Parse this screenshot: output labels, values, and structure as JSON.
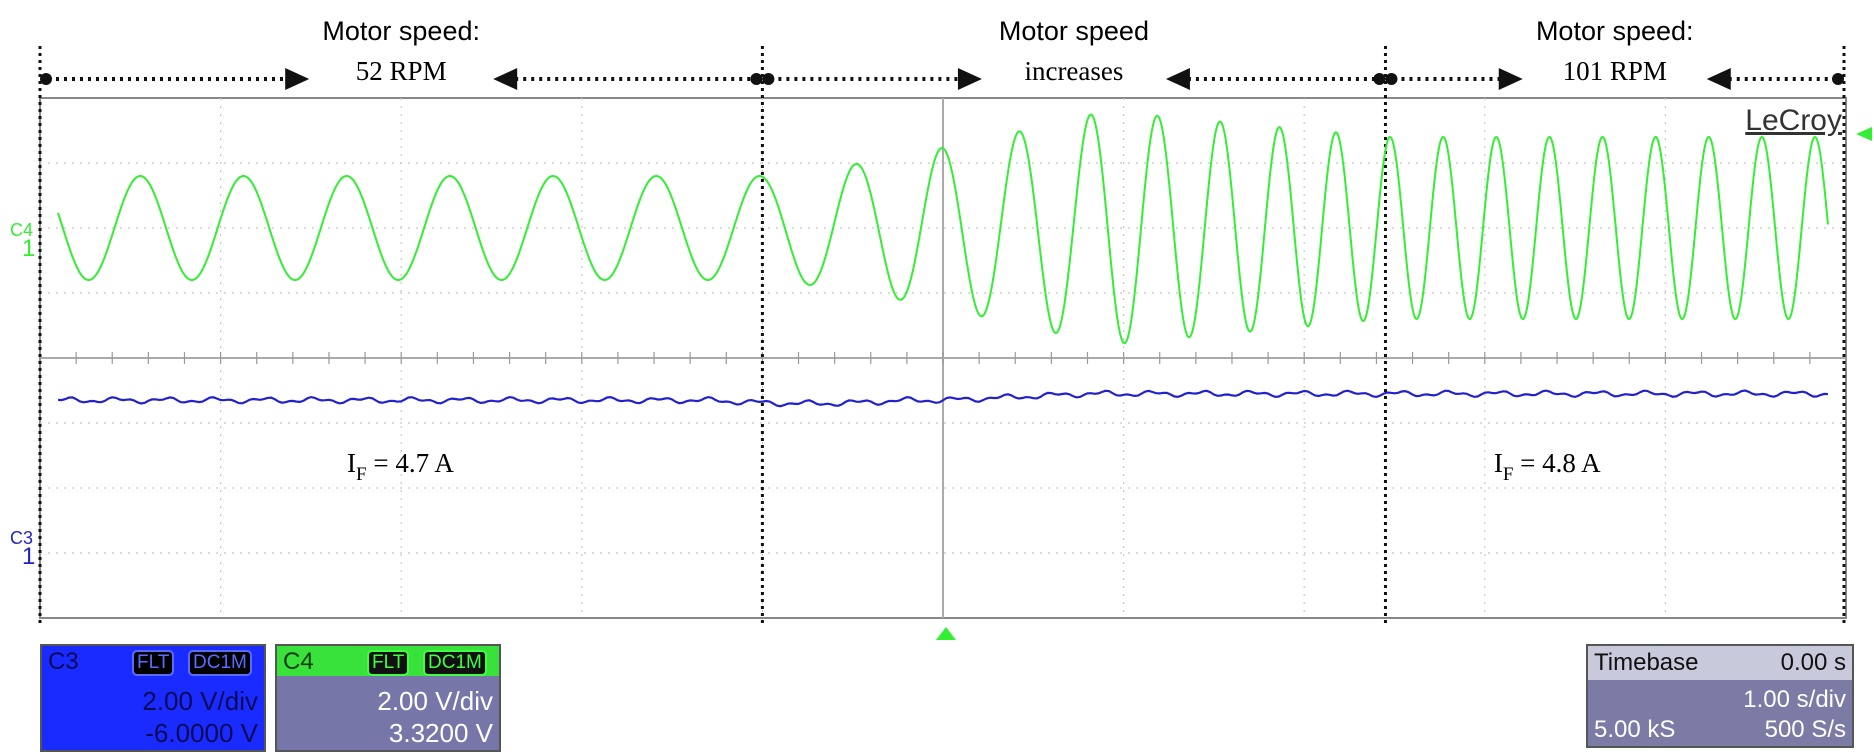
{
  "chart_data": {
    "type": "line",
    "title": "",
    "brand": "LeCroy",
    "x_unit": "s",
    "x_range": [
      -5,
      5
    ],
    "grid_divisions": {
      "x": 10,
      "y": 8
    },
    "series": [
      {
        "name": "C4",
        "label": "C4",
        "color": "#33ee33",
        "segments": [
          {
            "t_start": -4.9,
            "t_end": -1.0,
            "rpm": 52,
            "center_div": 2.0,
            "amplitude_div": 0.8,
            "freq_hz": 1.75
          },
          {
            "t_start": -1.0,
            "t_end": 2.45,
            "rpm_from": 52,
            "rpm_to": 101,
            "center_div": 2.0,
            "amplitude_div_peak": 1.8
          },
          {
            "t_start": 2.45,
            "t_end": 4.9,
            "rpm": 101,
            "center_div": 2.0,
            "amplitude_div": 1.4,
            "freq_hz": 3.4
          }
        ]
      },
      {
        "name": "C3",
        "label": "C3",
        "color": "#2222cc",
        "level_div_before": -0.65,
        "level_div_after": -0.55
      }
    ],
    "phases": [
      {
        "t_start": -5.0,
        "t_end": -1.0,
        "line1": "Motor speed:",
        "line2": "52 RPM"
      },
      {
        "t_start": -1.0,
        "t_end": 2.45,
        "line1": "Motor speed",
        "line2": "increases"
      },
      {
        "t_start": 2.45,
        "t_end": 5.0,
        "line1": "Motor speed:",
        "line2": "101 RPM"
      }
    ],
    "annotations": [
      {
        "text_base": "I",
        "text_sub": "F",
        "text_rest": " = 4.7 A",
        "t": -3.3,
        "y_div": -1.6
      },
      {
        "text_base": "I",
        "text_sub": "F",
        "text_rest": " = 4.8 A",
        "t": 3.05,
        "y_div": -1.6
      }
    ]
  },
  "channels": {
    "c3": {
      "name": "C3",
      "flt": "FLT",
      "coupling": "DC1M",
      "vdiv": "2.00 V/div",
      "offset": "-6.0000 V"
    },
    "c4": {
      "name": "C4",
      "flt": "FLT",
      "coupling": "DC1M",
      "vdiv": "2.00 V/div",
      "offset": "3.3200 V"
    }
  },
  "timebase": {
    "title": "Timebase",
    "delay": "0.00 s",
    "tdiv": "1.00 s/div",
    "samples": "5.00 kS",
    "rate": "500 S/s"
  },
  "markers": {
    "c4_marker": "C4",
    "c3_marker": "C3",
    "c4_ground": "1",
    "c3_ground": "1"
  }
}
